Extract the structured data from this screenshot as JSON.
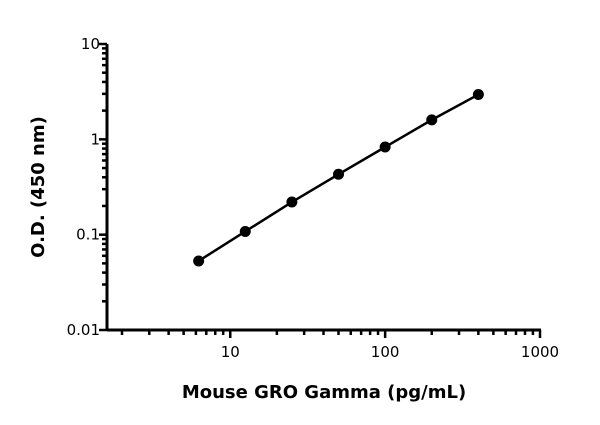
{
  "chart_data": {
    "type": "line",
    "title": "",
    "xlabel": "Mouse GRO Gamma (pg/mL)",
    "ylabel": "O.D. (450 nm)",
    "xscale": "log",
    "yscale": "log",
    "xlim": [
      1.6,
      1000
    ],
    "ylim": [
      0.01,
      10
    ],
    "xticks": [
      10,
      100,
      1000
    ],
    "xtick_labels": [
      "10",
      "100",
      "1000"
    ],
    "yticks": [
      0.01,
      0.1,
      1,
      10
    ],
    "ytick_labels": [
      "0.01",
      "0.1",
      "1",
      "10"
    ],
    "grid": false,
    "marker": "circle",
    "color": "#000000",
    "series": [
      {
        "x": [
          6.25,
          12.5,
          25,
          50,
          100,
          200,
          400
        ],
        "y": [
          0.053,
          0.108,
          0.22,
          0.43,
          0.83,
          1.6,
          2.95
        ]
      }
    ]
  }
}
